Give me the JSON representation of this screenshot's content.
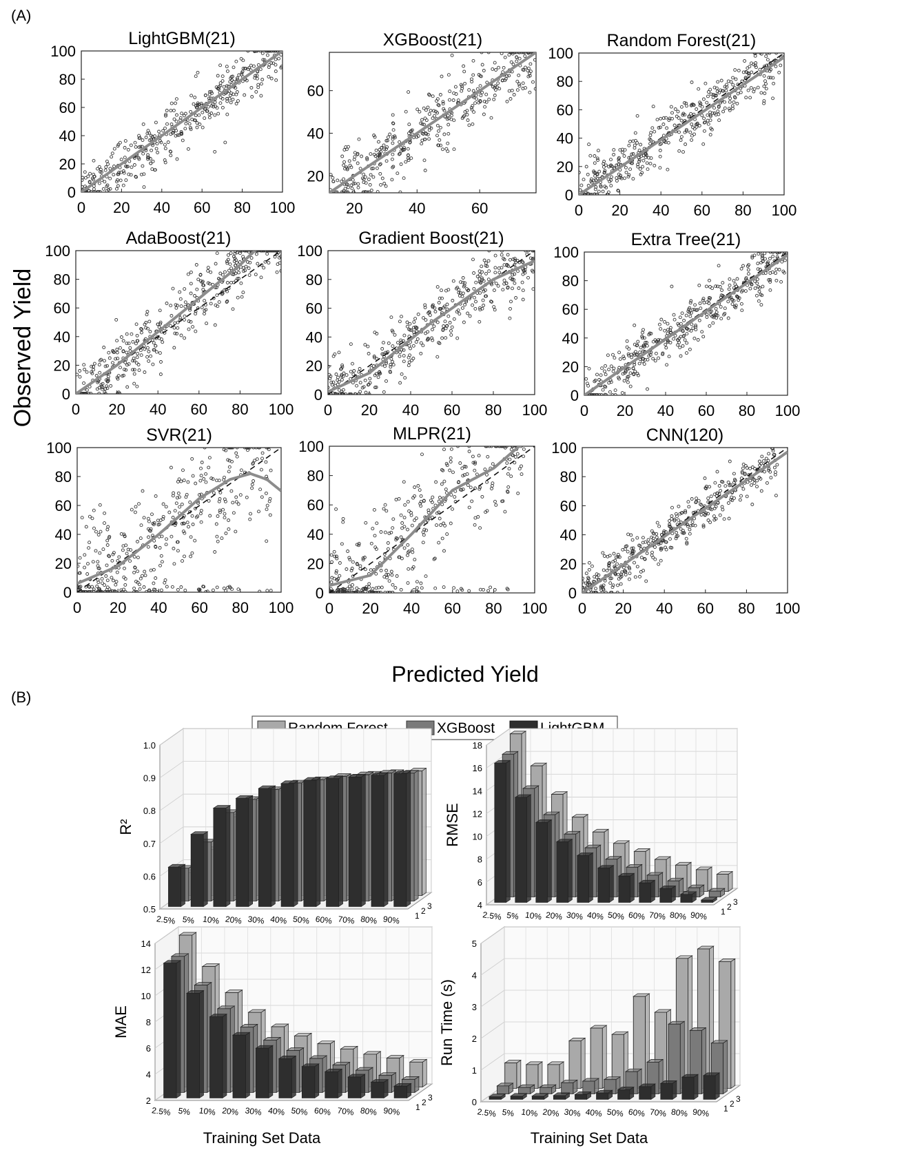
{
  "panel_a_label": "(A)",
  "panel_b_label": "(B)",
  "scatter_ylabel": "Observed Yield",
  "scatter_xlabel": "Predicted Yield",
  "bar_legend": [
    "Random Forest",
    "XGBoost",
    "LightGBM"
  ],
  "bar_xlabel": "Training Set Data",
  "depth_ticks": [
    "1",
    "2",
    "3"
  ],
  "colors": {
    "rf": "#a9a9a9",
    "xgb": "#7a7a7a",
    "lgbm": "#2e2e2e",
    "points": "#333333",
    "fit": "#8c8c8c"
  },
  "chart_data": [
    {
      "type": "scatter",
      "title": "LightGBM(21)",
      "xlim": [
        0,
        100
      ],
      "ylim": [
        0,
        100
      ],
      "xticks": [
        0,
        20,
        40,
        60,
        80,
        100
      ],
      "yticks": [
        0,
        20,
        40,
        60,
        80,
        100
      ],
      "spread": 9,
      "fit": [
        [
          0,
          0
        ],
        [
          100,
          100
        ]
      ]
    },
    {
      "type": "scatter",
      "title": "XGBoost(21)",
      "xlim": [
        12,
        78
      ],
      "ylim": [
        12,
        78
      ],
      "xticks": [
        20,
        40,
        60
      ],
      "yticks": [
        20,
        40,
        60
      ],
      "spread": 8,
      "fit": [
        [
          12,
          12
        ],
        [
          78,
          78
        ]
      ]
    },
    {
      "type": "scatter",
      "title": "Random Forest(21)",
      "xlim": [
        0,
        100
      ],
      "ylim": [
        0,
        100
      ],
      "xticks": [
        0,
        20,
        40,
        60,
        80,
        100
      ],
      "yticks": [
        0,
        20,
        40,
        60,
        80,
        100
      ],
      "spread": 9,
      "fit": [
        [
          0,
          0
        ],
        [
          100,
          97
        ]
      ]
    },
    {
      "type": "scatter",
      "title": "AdaBoost(21)",
      "xlim": [
        0,
        100
      ],
      "ylim": [
        0,
        100
      ],
      "xticks": [
        0,
        20,
        40,
        60,
        80,
        100
      ],
      "yticks": [
        0,
        20,
        40,
        60,
        80,
        100
      ],
      "spread": 10,
      "fit": [
        [
          0,
          0
        ],
        [
          20,
          20
        ],
        [
          50,
          55
        ],
        [
          80,
          90
        ],
        [
          90,
          104
        ]
      ]
    },
    {
      "type": "scatter",
      "title": "Gradient Boost(21)",
      "xlim": [
        0,
        100
      ],
      "ylim": [
        0,
        100
      ],
      "xticks": [
        0,
        20,
        40,
        60,
        80,
        100
      ],
      "yticks": [
        0,
        20,
        40,
        60,
        80,
        100
      ],
      "spread": 10,
      "fit": [
        [
          0,
          2
        ],
        [
          20,
          15
        ],
        [
          50,
          50
        ],
        [
          80,
          80
        ],
        [
          100,
          93
        ]
      ]
    },
    {
      "type": "scatter",
      "title": "Extra Tree(21)",
      "xlim": [
        0,
        100
      ],
      "ylim": [
        0,
        100
      ],
      "xticks": [
        0,
        20,
        40,
        60,
        80,
        100
      ],
      "yticks": [
        0,
        20,
        40,
        60,
        80,
        100
      ],
      "spread": 9,
      "fit": [
        [
          0,
          0
        ],
        [
          100,
          98
        ]
      ]
    },
    {
      "type": "scatter",
      "title": "SVR(21)",
      "xlim": [
        0,
        100
      ],
      "ylim": [
        0,
        100
      ],
      "xticks": [
        0,
        20,
        40,
        60,
        80,
        100
      ],
      "yticks": [
        0,
        20,
        40,
        60,
        80,
        100
      ],
      "spread": 20,
      "fit": [
        [
          0,
          6
        ],
        [
          20,
          18
        ],
        [
          40,
          40
        ],
        [
          60,
          65
        ],
        [
          75,
          78
        ],
        [
          85,
          82
        ],
        [
          93,
          78
        ],
        [
          100,
          70
        ]
      ]
    },
    {
      "type": "scatter",
      "title": "MLPR(21)",
      "xlim": [
        0,
        100
      ],
      "ylim": [
        0,
        100
      ],
      "xticks": [
        0,
        20,
        40,
        60,
        80,
        100
      ],
      "yticks": [
        0,
        20,
        40,
        60,
        80,
        100
      ],
      "spread": 18,
      "fit": [
        [
          0,
          5
        ],
        [
          20,
          12
        ],
        [
          40,
          40
        ],
        [
          60,
          70
        ],
        [
          80,
          85
        ],
        [
          95,
          103
        ]
      ]
    },
    {
      "type": "scatter",
      "title": "CNN(120)",
      "xlim": [
        0,
        100
      ],
      "ylim": [
        0,
        100
      ],
      "xticks": [
        0,
        20,
        40,
        60,
        80,
        100
      ],
      "yticks": [
        0,
        20,
        40,
        60,
        80,
        100
      ],
      "spread": 7,
      "fit": [
        [
          0,
          0
        ],
        [
          100,
          97
        ]
      ]
    },
    {
      "type": "bar",
      "ylabel": "R²",
      "categories": [
        "2.5%",
        "5%",
        "10%",
        "20%",
        "30%",
        "40%",
        "50%",
        "60%",
        "70%",
        "80%",
        "90%"
      ],
      "ylim": [
        0.5,
        1.0
      ],
      "yticks": [
        "0.5",
        "0.6",
        "0.7",
        "0.8",
        "0.9",
        "1.0"
      ],
      "series": [
        {
          "name": "Random Forest",
          "values": [
            0.57,
            0.64,
            0.74,
            0.79,
            0.82,
            0.84,
            0.85,
            0.86,
            0.87,
            0.875,
            0.88
          ]
        },
        {
          "name": "XGBoost",
          "values": [
            0.6,
            0.68,
            0.77,
            0.81,
            0.84,
            0.86,
            0.87,
            0.88,
            0.885,
            0.89,
            0.89
          ]
        },
        {
          "name": "LightGBM",
          "values": [
            0.62,
            0.72,
            0.8,
            0.83,
            0.86,
            0.875,
            0.885,
            0.89,
            0.895,
            0.9,
            0.905
          ]
        }
      ]
    },
    {
      "type": "bar",
      "ylabel": "RMSE",
      "categories": [
        "2.5%",
        "5%",
        "10%",
        "20%",
        "30%",
        "40%",
        "50%",
        "60%",
        "70%",
        "80%",
        "90%"
      ],
      "ylim": [
        4,
        18
      ],
      "yticks": [
        "4",
        "6",
        "8",
        "10",
        "12",
        "14",
        "16",
        "18"
      ],
      "series": [
        {
          "name": "Random Forest",
          "values": [
            17.8,
            15.0,
            12.5,
            10.5,
            9.2,
            8.2,
            7.5,
            6.8,
            6.3,
            5.9,
            5.5
          ]
        },
        {
          "name": "XGBoost",
          "values": [
            16.5,
            13.5,
            11.2,
            9.5,
            8.3,
            7.3,
            6.6,
            5.9,
            5.4,
            4.8,
            4.5
          ]
        },
        {
          "name": "LightGBM",
          "values": [
            16.2,
            13.2,
            11.0,
            9.3,
            8.1,
            7.0,
            6.3,
            5.7,
            5.2,
            4.7,
            4.2
          ]
        }
      ]
    },
    {
      "type": "bar",
      "ylabel": "MAE",
      "categories": [
        "2.5%",
        "5%",
        "10%",
        "20%",
        "30%",
        "40%",
        "50%",
        "60%",
        "70%",
        "80%",
        "90%"
      ],
      "ylim": [
        2,
        14
      ],
      "yticks": [
        "2",
        "4",
        "6",
        "8",
        "10",
        "12",
        "14"
      ],
      "series": [
        {
          "name": "Random Forest",
          "values": [
            13.6,
            11.2,
            9.2,
            7.7,
            6.6,
            5.9,
            5.3,
            4.9,
            4.5,
            4.2,
            3.9
          ]
        },
        {
          "name": "XGBoost",
          "values": [
            12.4,
            10.2,
            8.4,
            7.0,
            6.0,
            5.2,
            4.6,
            4.1,
            3.7,
            3.3,
            3.0
          ]
        },
        {
          "name": "LightGBM",
          "values": [
            12.3,
            10.0,
            8.2,
            6.8,
            5.8,
            5.0,
            4.4,
            4.0,
            3.6,
            3.2,
            2.9
          ]
        }
      ]
    },
    {
      "type": "bar",
      "ylabel": "Run Time (s)",
      "categories": [
        "2.5%",
        "5%",
        "10%",
        "20%",
        "30%",
        "40%",
        "50%",
        "60%",
        "70%",
        "80%",
        "90%"
      ],
      "ylim": [
        0,
        5
      ],
      "yticks": [
        "0",
        "1",
        "2",
        "3",
        "4",
        "5"
      ],
      "series": [
        {
          "name": "Random Forest",
          "values": [
            0.8,
            0.75,
            0.75,
            1.5,
            1.9,
            1.7,
            2.9,
            2.4,
            4.1,
            4.4,
            4.0
          ]
        },
        {
          "name": "XGBoost",
          "values": [
            0.25,
            0.2,
            0.2,
            0.35,
            0.4,
            0.45,
            0.7,
            1.0,
            2.2,
            2.0,
            1.6
          ]
        },
        {
          "name": "LightGBM",
          "values": [
            0.08,
            0.1,
            0.1,
            0.12,
            0.15,
            0.2,
            0.3,
            0.4,
            0.5,
            0.7,
            0.75
          ]
        }
      ]
    }
  ]
}
